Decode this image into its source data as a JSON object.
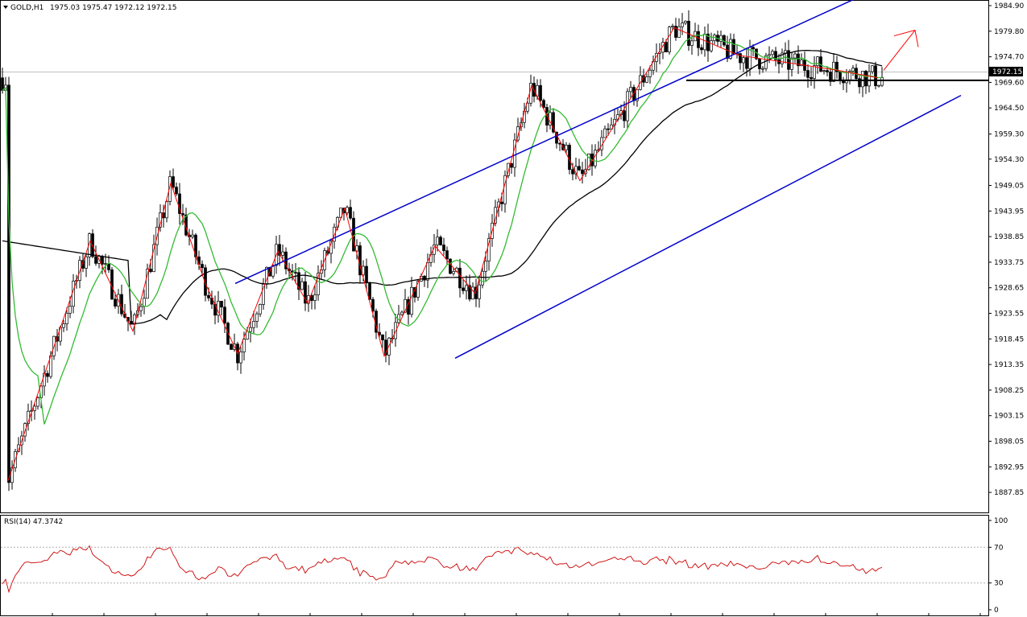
{
  "header": {
    "symbol": "GOLD,H1",
    "ohlc": "1975.03 1975.47 1972.12 1972.15"
  },
  "price_axis": {
    "ticks": [
      "1984.90",
      "1979.80",
      "1974.70",
      "1969.60",
      "1964.50",
      "1959.30",
      "1954.30",
      "1949.05",
      "1943.95",
      "1938.85",
      "1933.75",
      "1928.65",
      "1923.55",
      "1918.45",
      "1913.35",
      "1908.25",
      "1903.15",
      "1898.05",
      "1892.95",
      "1887.85"
    ],
    "current_price": "1972.15"
  },
  "rsi": {
    "label": "RSI(14) 47.3742",
    "ticks": [
      "100",
      "70",
      "30",
      "0"
    ]
  },
  "colors": {
    "candles": "#000000",
    "zigzag": "#ff0000",
    "channel": "#0000cc",
    "ma_fast": "#33bb33",
    "ma_slow": "#000000",
    "rsi_line": "#cc0000",
    "support": "#000000"
  },
  "chart_data": {
    "type": "line",
    "title": "",
    "ylim": [
      1887.85,
      1986.5
    ],
    "zigzag_prices": [
      1890.2,
      1938.0,
      1920.0,
      1949.5,
      1929.5,
      1915.5,
      1936.0,
      1925.5,
      1944.5,
      1915.0,
      1937.0,
      1927.5,
      1969.0,
      1950.0,
      1980.5,
      1975.0,
      1972.0,
      1970.5
    ],
    "projection_target": 1980.0,
    "support_level": 1970.0,
    "current_price": 1972.15,
    "rsi_ylim": [
      0,
      100
    ],
    "rsi_levels": [
      70,
      30
    ],
    "rsi_last": 47.3742
  }
}
